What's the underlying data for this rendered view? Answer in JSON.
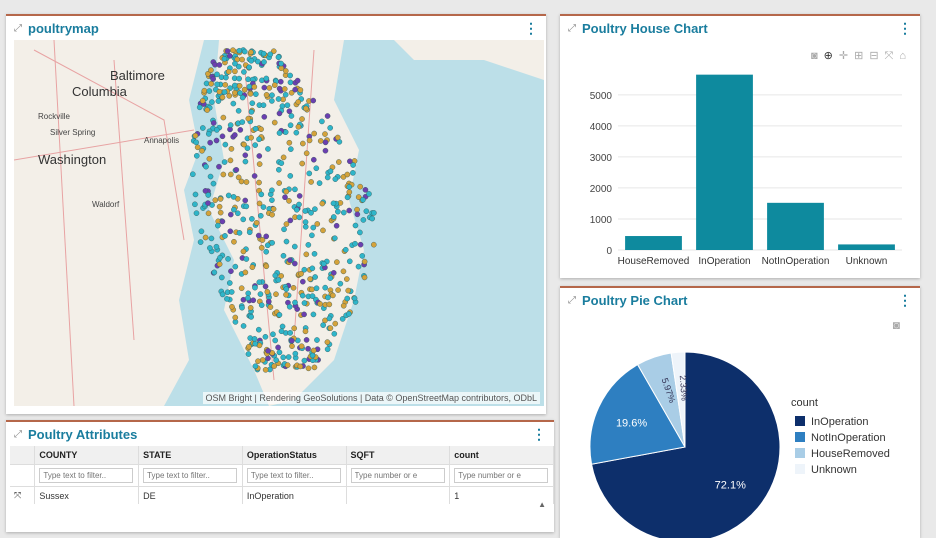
{
  "map_panel": {
    "title": "poultrymap",
    "attribution": "OSM Bright | Rendering GeoSolutions | Data © OpenStreetMap contributors, ODbL",
    "labels": [
      "Baltimore",
      "Columbia",
      "Washington",
      "Rockville",
      "Silver Spring",
      "Annapolis",
      "Waldorf"
    ]
  },
  "bar_panel": {
    "title": "Poultry House Chart"
  },
  "pie_panel": {
    "title": "Poultry Pie Chart"
  },
  "table_panel": {
    "title": "Poultry Attributes",
    "columns": [
      "COUNTY",
      "STATE",
      "OperationStatus",
      "SQFT",
      "count"
    ],
    "filters": [
      "Type text to filter..",
      "Type text to filter..",
      "Type text to filter..",
      "Type number or e",
      "Type number or e"
    ],
    "rows": [
      [
        "Sussex",
        "DE",
        "InOperation",
        "",
        "1"
      ]
    ]
  },
  "chart_data": [
    {
      "type": "bar",
      "categories": [
        "HouseRemoved",
        "InOperation",
        "NotInOperation",
        "Unknown"
      ],
      "values": [
        450,
        5650,
        1520,
        180
      ],
      "ylim": [
        0,
        5800
      ],
      "yticks": [
        0,
        1000,
        2000,
        3000,
        4000,
        5000
      ],
      "color": "#0e8a9e"
    },
    {
      "type": "pie",
      "legend_title": "count",
      "labels": [
        "InOperation",
        "NotInOperation",
        "HouseRemoved",
        "Unknown"
      ],
      "values": [
        72.1,
        19.6,
        5.97,
        2.33
      ],
      "display": [
        "72.1%",
        "19.6%",
        "5.97%",
        "2.33%"
      ],
      "colors": [
        "#0d2f6b",
        "#2e7fc1",
        "#a9cde6",
        "#eef4fa"
      ]
    }
  ]
}
